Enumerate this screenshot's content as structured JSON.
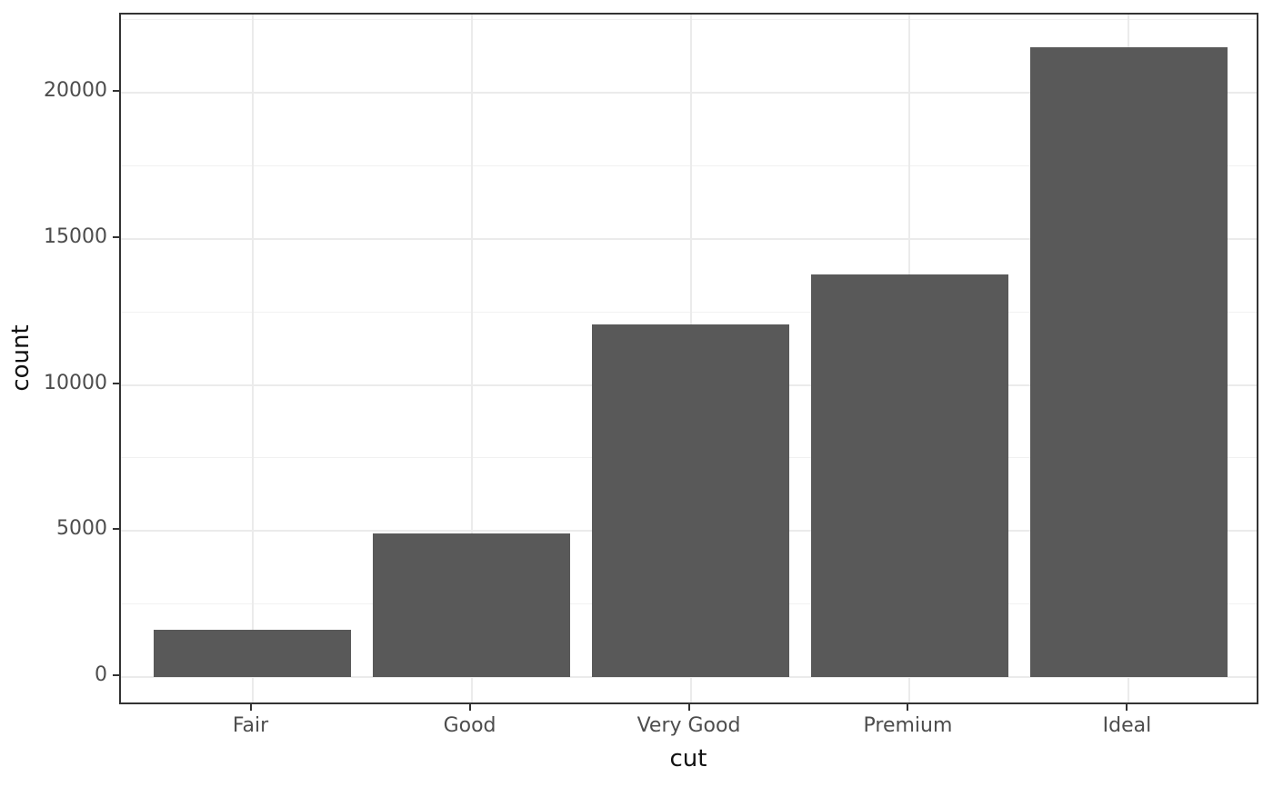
{
  "chart_data": {
    "type": "bar",
    "title": "",
    "xlabel": "cut",
    "ylabel": "count",
    "categories": [
      "Fair",
      "Good",
      "Very Good",
      "Premium",
      "Ideal"
    ],
    "values": [
      1610,
      4906,
      12082,
      13791,
      21551
    ],
    "ylim": [
      0,
      22500
    ],
    "y_major_ticks": [
      0,
      5000,
      10000,
      15000,
      20000
    ],
    "y_minor_gridlines": [
      2500,
      7500,
      12500,
      17500,
      22500
    ],
    "grid": true,
    "legend_position": "none",
    "colors": {
      "bar_fill": "#595959",
      "panel_border": "#333333",
      "grid_major": "#ebebeb",
      "grid_minor": "#f1f1f1",
      "tick_text": "#4d4d4d",
      "axis_title_text": "#111111",
      "background": "#ffffff"
    }
  }
}
